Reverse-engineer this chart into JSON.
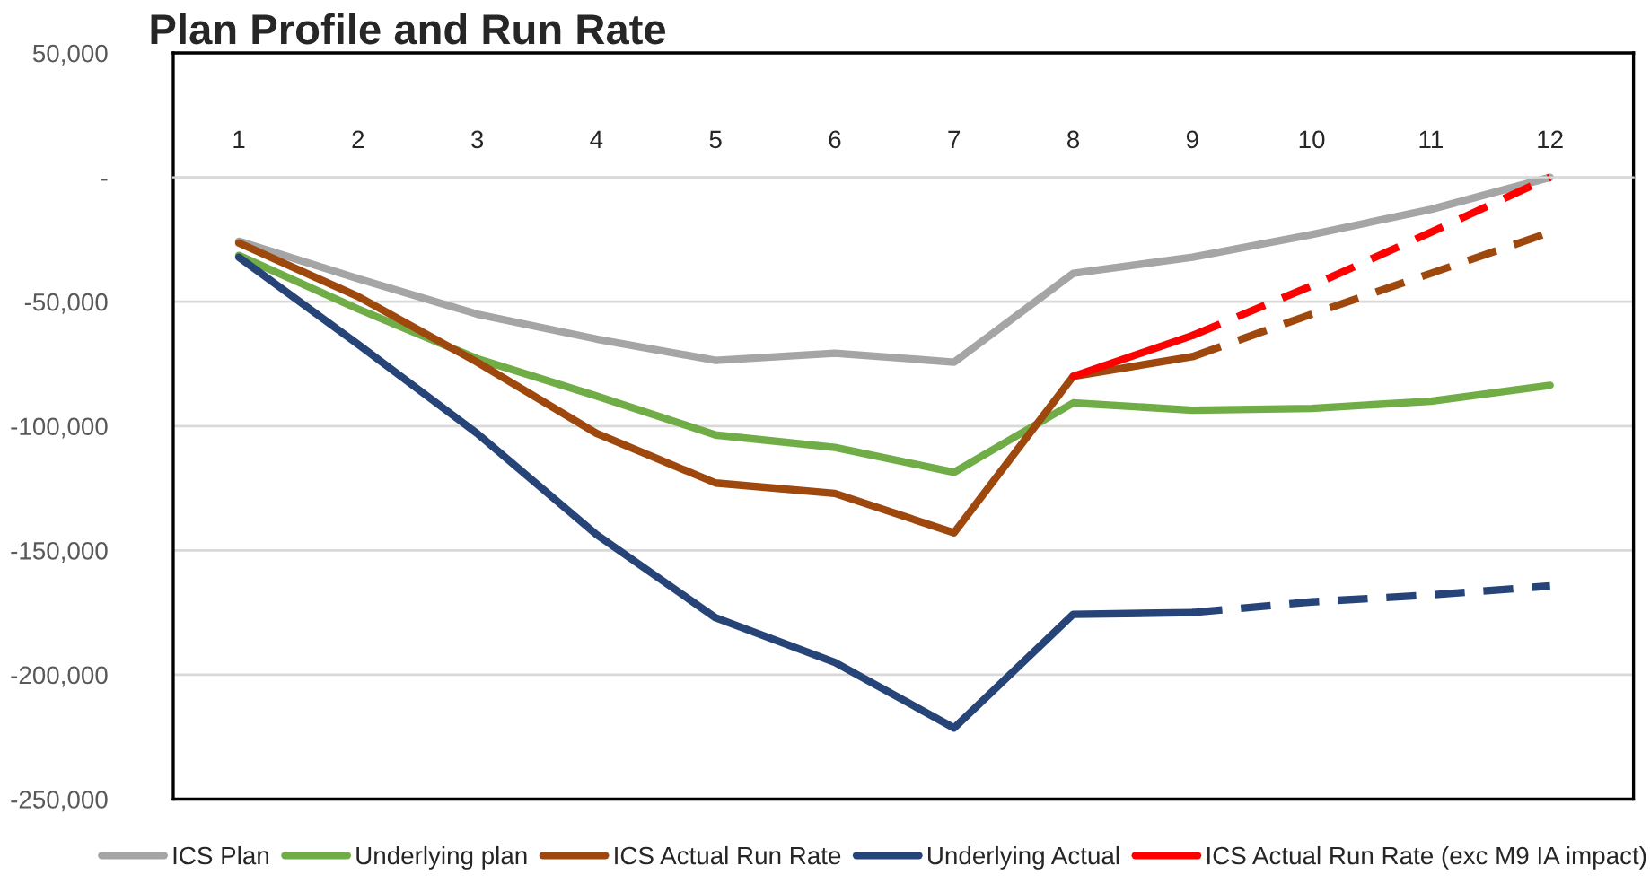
{
  "chart_data": {
    "type": "line",
    "title": "Plan Profile and Run Rate",
    "categories": [
      "1",
      "2",
      "3",
      "4",
      "5",
      "6",
      "7",
      "8",
      "9",
      "10",
      "11",
      "12"
    ],
    "series": [
      {
        "name": "ICS Plan",
        "color": "#a5a5a5",
        "values": [
          -25700,
          -40700,
          -55000,
          -65000,
          -73600,
          -70700,
          -74300,
          -38600,
          -32100,
          -23000,
          -12900,
          0
        ]
      },
      {
        "name": "Underlying plan",
        "color": "#70ad47",
        "values": [
          -31400,
          -52900,
          -72900,
          -87900,
          -103600,
          -108600,
          -118600,
          -90700,
          -93600,
          -92900,
          -90000,
          -83600
        ]
      },
      {
        "name": "ICS Actual Run Rate",
        "color": "#9e480e",
        "values": [
          -26400,
          -47900,
          -74300,
          -102900,
          -122900,
          -127100,
          -142900,
          -80000,
          -72100,
          null,
          null,
          null
        ]
      },
      {
        "color": "#9e480e",
        "line_style": "dashed",
        "values": [
          null,
          null,
          null,
          null,
          null,
          null,
          null,
          null,
          -72100,
          -55000,
          -38600,
          -22100
        ]
      },
      {
        "name": "Underlying Actual",
        "color": "#264478",
        "values": [
          -32100,
          -67100,
          -103000,
          -143600,
          -177100,
          -195000,
          -221400,
          -175700,
          -175000,
          null,
          null,
          null
        ]
      },
      {
        "color": "#264478",
        "line_style": "dashed",
        "values": [
          null,
          null,
          null,
          null,
          null,
          null,
          null,
          null,
          -175000,
          -170700,
          -167900,
          -164300
        ]
      },
      {
        "name": "ICS Actual Run Rate (exc M9 IA impact)",
        "color": "#ff0000",
        "values": [
          null,
          null,
          null,
          null,
          null,
          null,
          null,
          -80000,
          -63600,
          null,
          null,
          null
        ]
      },
      {
        "color": "#ff0000",
        "line_style": "dashed",
        "values": [
          null,
          null,
          null,
          null,
          null,
          null,
          null,
          null,
          -63600,
          -43600,
          -22100,
          0
        ]
      }
    ],
    "ylim": [
      -250000,
      50000
    ],
    "yticks": [
      {
        "value": -250000,
        "label": "-250,000"
      },
      {
        "value": -200000,
        "label": "-200,000"
      },
      {
        "value": -150000,
        "label": "-150,000"
      },
      {
        "value": -100000,
        "label": "-100,000"
      },
      {
        "value": -50000,
        "label": "-50,000"
      },
      {
        "value": 0,
        "label": "-"
      },
      {
        "value": 50000,
        "label": "50,000"
      }
    ],
    "grid": "y",
    "legend": "bottom",
    "line_style": "solid",
    "marker": "none"
  }
}
